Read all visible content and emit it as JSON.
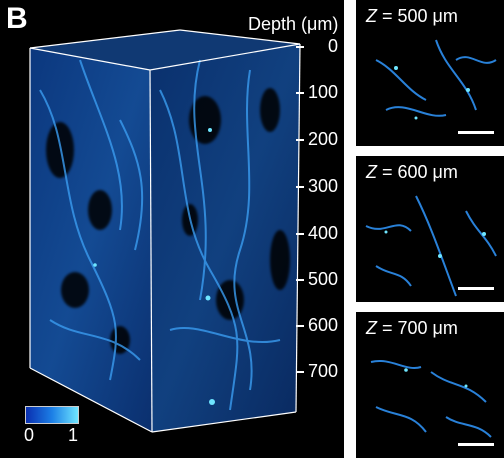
{
  "panel_letter": "B",
  "depth_axis": {
    "title": "Depth (μm)",
    "ticks": [
      "0",
      "100",
      "200",
      "300",
      "400",
      "500",
      "600",
      "700"
    ]
  },
  "colorbar": {
    "min_label": "0",
    "max_label": "1",
    "colors": [
      "#0a2fb0",
      "#1c7fe6",
      "#6fe6ff"
    ]
  },
  "slices": [
    {
      "z_var": "Z",
      "z_text": " = 500 μm"
    },
    {
      "z_var": "Z",
      "z_text": " = 600 μm"
    },
    {
      "z_var": "Z",
      "z_text": " = 700 μm"
    }
  ],
  "colors": {
    "tissue": "#1d6fd6",
    "highlight": "#55d4ff",
    "background": "#000000"
  }
}
